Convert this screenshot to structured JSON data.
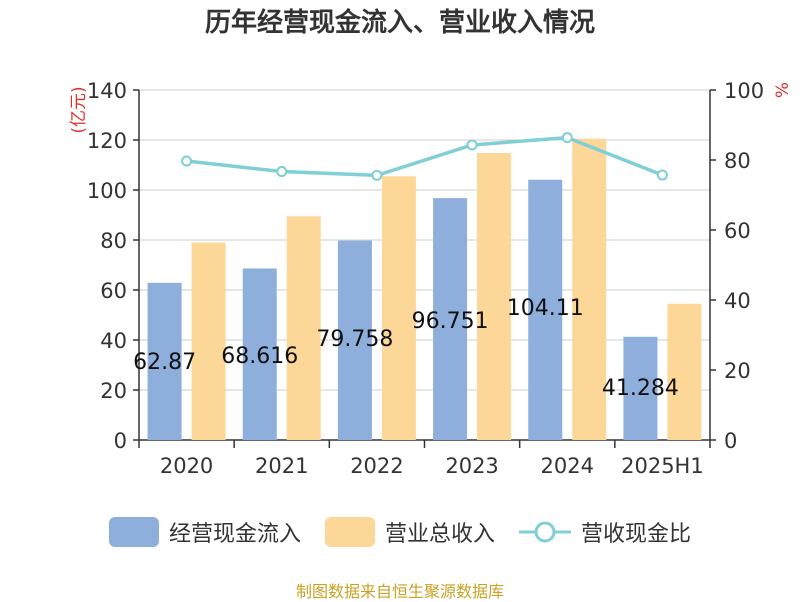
{
  "title": "历年经营现金流入、营业收入情况",
  "source": "制图数据来自恒生聚源数据库",
  "colors": {
    "bar1": "#8eaedb",
    "bar2": "#fdd797",
    "line": "#7fcfd5",
    "axis": "#333333",
    "grid": "#cccccc",
    "unit": "#e03030"
  },
  "chart_data": {
    "type": "bar",
    "categories": [
      "2020",
      "2021",
      "2022",
      "2023",
      "2024",
      "2025H1"
    ],
    "series": [
      {
        "name": "经营现金流入",
        "values": [
          62.87,
          68.616,
          79.758,
          96.751,
          104.11,
          41.284
        ],
        "labels": [
          "62.87",
          "68.616",
          "79.758",
          "96.751",
          "104.11",
          "41.284"
        ],
        "axis": "left",
        "kind": "bar"
      },
      {
        "name": "营业总收入",
        "values": [
          79,
          89.5,
          105.5,
          114.8,
          120.5,
          54.5
        ],
        "axis": "left",
        "kind": "bar"
      },
      {
        "name": "营收现金比",
        "values": [
          79.7,
          76.7,
          75.6,
          84.3,
          86.4,
          75.7
        ],
        "axis": "right",
        "kind": "line"
      }
    ],
    "ylabel_left": "(亿元)",
    "ylabel_right": "%",
    "ylim_left": [
      0,
      140
    ],
    "yticks_left": [
      0,
      20,
      40,
      60,
      80,
      100,
      120,
      140
    ],
    "ylim_right": [
      0,
      100
    ],
    "yticks_right": [
      0,
      20,
      40,
      60,
      80,
      100
    ],
    "grid": true,
    "legend_position": "bottom"
  }
}
